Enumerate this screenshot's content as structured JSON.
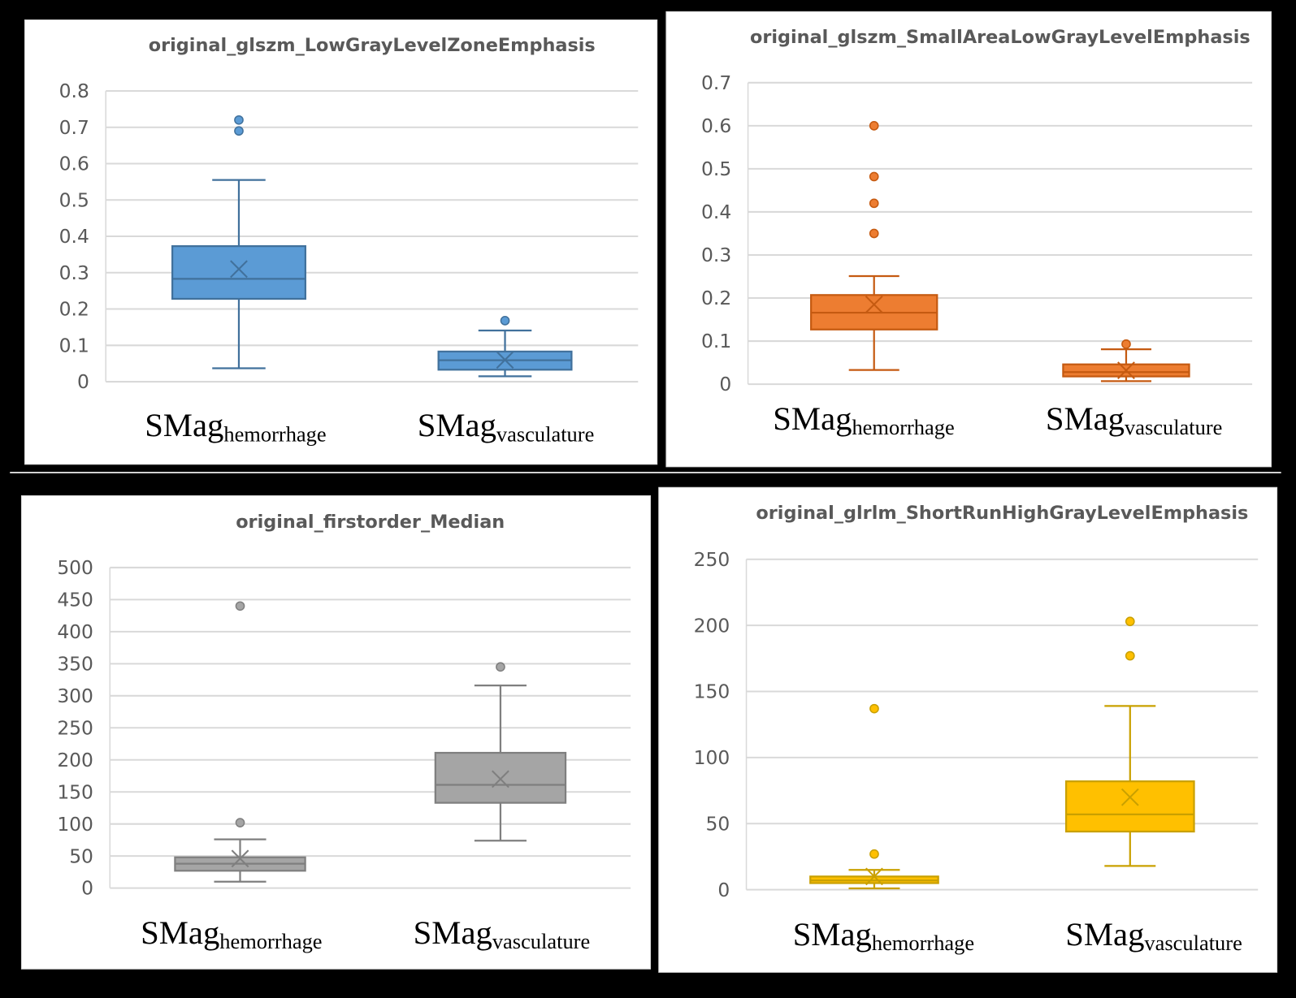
{
  "chart_data": [
    {
      "type": "box",
      "title": "original_glszm_LowGrayLevelZoneEmphasis",
      "color": "#5B9BD5",
      "edge": "#41719C",
      "ylim": [
        0,
        0.8
      ],
      "yticks": [
        "0",
        "0.1",
        "0.2",
        "0.3",
        "0.4",
        "0.5",
        "0.6",
        "0.7",
        "0.8"
      ],
      "ytick_values": [
        0,
        0.1,
        0.2,
        0.3,
        0.4,
        0.5,
        0.6,
        0.7,
        0.8
      ],
      "grid": true,
      "categories": [
        {
          "main": "SMag",
          "sub": "hemorrhage"
        },
        {
          "main": "SMag",
          "sub": "vasculature"
        }
      ],
      "boxes": [
        {
          "min": 0.037,
          "q1": 0.228,
          "median": 0.283,
          "q3": 0.373,
          "max": 0.555,
          "mean": 0.31,
          "outliers": [
            0.72,
            0.69
          ]
        },
        {
          "min": 0.015,
          "q1": 0.033,
          "median": 0.059,
          "q3": 0.083,
          "max": 0.141,
          "mean": 0.06,
          "outliers": [
            0.168
          ]
        }
      ]
    },
    {
      "type": "box",
      "title": "original_glszm_SmallAreaLowGrayLevelEmphasis",
      "color": "#ED7D31",
      "edge": "#C55A11",
      "ylim": [
        0,
        0.7
      ],
      "yticks": [
        "0",
        "0.1",
        "0.2",
        "0.3",
        "0.4",
        "0.5",
        "0.6",
        "0.7"
      ],
      "ytick_values": [
        0,
        0.1,
        0.2,
        0.3,
        0.4,
        0.5,
        0.6,
        0.7
      ],
      "grid": true,
      "categories": [
        {
          "main": "SMag",
          "sub": "hemorrhage"
        },
        {
          "main": "SMag",
          "sub": "vasculature"
        }
      ],
      "boxes": [
        {
          "min": 0.033,
          "q1": 0.127,
          "median": 0.166,
          "q3": 0.207,
          "max": 0.251,
          "mean": 0.185,
          "outliers": [
            0.6,
            0.482,
            0.42,
            0.35
          ]
        },
        {
          "min": 0.007,
          "q1": 0.018,
          "median": 0.028,
          "q3": 0.046,
          "max": 0.081,
          "mean": 0.032,
          "outliers": [
            0.093
          ]
        }
      ]
    },
    {
      "type": "box",
      "title": "original_firstorder_Median",
      "color": "#A5A5A5",
      "edge": "#7F7F7F",
      "ylim": [
        0,
        500
      ],
      "yticks": [
        "0",
        "50",
        "100",
        "150",
        "200",
        "250",
        "300",
        "350",
        "400",
        "450",
        "500"
      ],
      "ytick_values": [
        0,
        50,
        100,
        150,
        200,
        250,
        300,
        350,
        400,
        450,
        500
      ],
      "grid": true,
      "categories": [
        {
          "main": "SMag",
          "sub": "hemorrhage"
        },
        {
          "main": "SMag",
          "sub": "vasculature"
        }
      ],
      "boxes": [
        {
          "min": 10,
          "q1": 27,
          "median": 38,
          "q3": 48,
          "max": 76,
          "mean": 46,
          "outliers": [
            440,
            102
          ]
        },
        {
          "min": 74,
          "q1": 133,
          "median": 161,
          "q3": 211,
          "max": 316,
          "mean": 170,
          "outliers": [
            345
          ]
        }
      ]
    },
    {
      "type": "box",
      "title": "original_glrlm_ShortRunHighGrayLevelEmphasis",
      "color": "#FFC000",
      "edge": "#C9A000",
      "ylim": [
        0,
        250
      ],
      "yticks": [
        "0",
        "50",
        "100",
        "150",
        "200",
        "250"
      ],
      "ytick_values": [
        0,
        50,
        100,
        150,
        200,
        250
      ],
      "grid": true,
      "categories": [
        {
          "main": "SMag",
          "sub": "hemorrhage"
        },
        {
          "main": "SMag",
          "sub": "vasculature"
        }
      ],
      "boxes": [
        {
          "min": 1,
          "q1": 5,
          "median": 7,
          "q3": 10,
          "max": 15,
          "mean": 10,
          "outliers": [
            137,
            27
          ]
        },
        {
          "min": 18,
          "q1": 44,
          "median": 57,
          "q3": 82,
          "max": 139,
          "mean": 70,
          "outliers": [
            203,
            177
          ]
        }
      ]
    }
  ]
}
